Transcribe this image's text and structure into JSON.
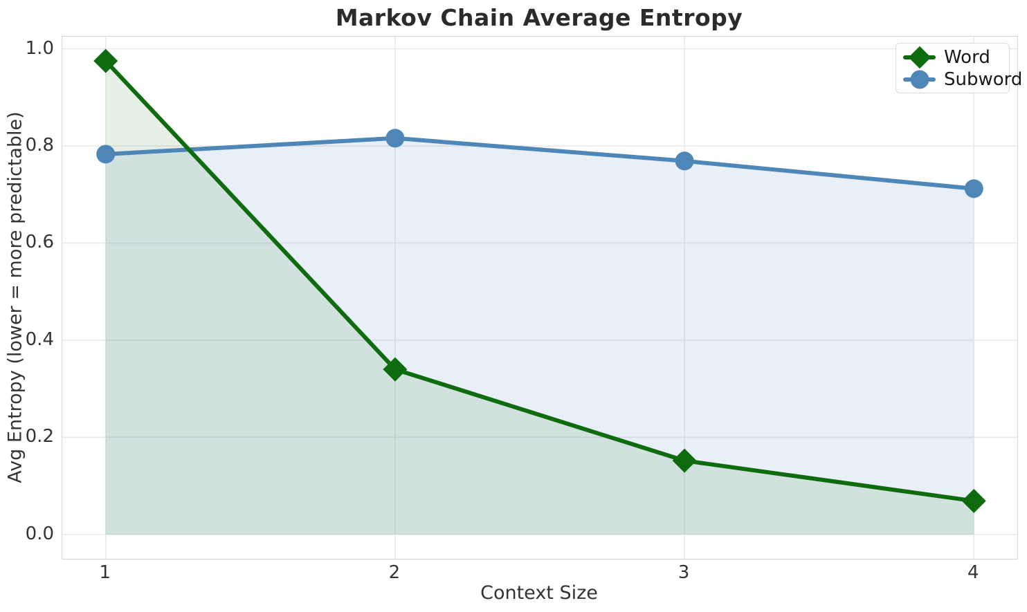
{
  "chart_data": {
    "type": "line",
    "title": "Markov Chain Average Entropy",
    "xlabel": "Context Size",
    "ylabel": "Avg Entropy (lower = more predictable)",
    "x": [
      1,
      2,
      3,
      4
    ],
    "series": [
      {
        "name": "Word",
        "values": [
          0.975,
          0.34,
          0.152,
          0.069
        ],
        "color": "#0e6b0e",
        "marker": "diamond",
        "fill_to_zero": true,
        "fill_opacity": 0.1,
        "zorder": 2
      },
      {
        "name": "Subword",
        "values": [
          0.783,
          0.816,
          0.769,
          0.712
        ],
        "color": "#4e86b8",
        "marker": "circle",
        "fill_to_zero": true,
        "fill_opacity": 0.13,
        "zorder": 1
      }
    ],
    "xticks": {
      "values": [
        1,
        2,
        3,
        4
      ],
      "labels": [
        "1",
        "2",
        "3",
        "4"
      ]
    },
    "yticks": {
      "values": [
        0.0,
        0.2,
        0.4,
        0.6,
        0.8,
        1.0
      ],
      "labels": [
        "0.0",
        "0.2",
        "0.4",
        "0.6",
        "0.8",
        "1.0"
      ]
    },
    "xlim": [
      0.85,
      4.15
    ],
    "ylim": [
      -0.05,
      1.025
    ],
    "grid": true,
    "legend_position": "upper right",
    "colors": {
      "title_text": "#2b2b2b",
      "tick_text": "#333333",
      "grid": "#e9e9e9",
      "plot_border": "#d4d4d4",
      "background": "#ffffff"
    }
  }
}
